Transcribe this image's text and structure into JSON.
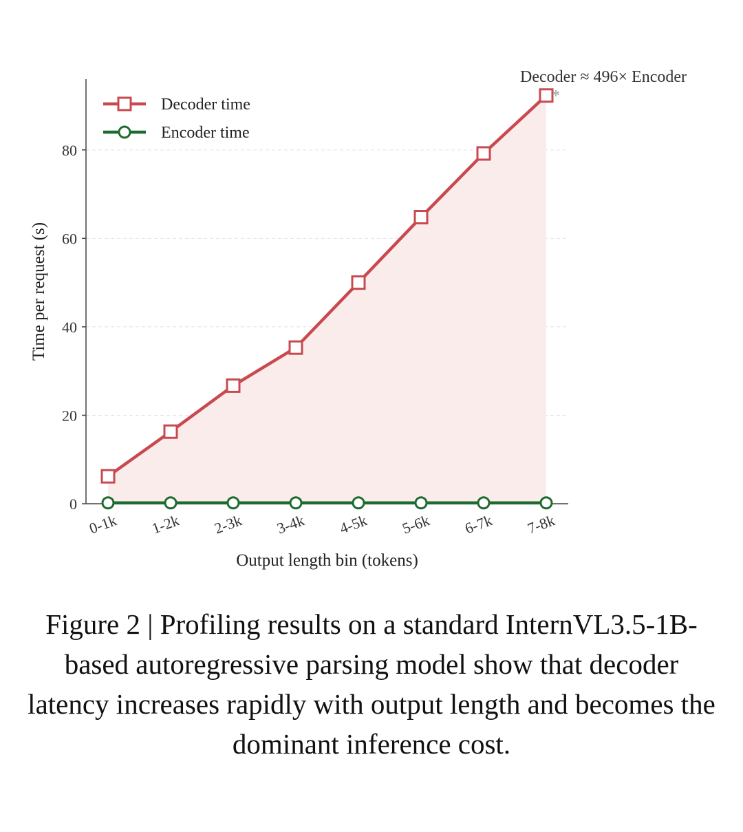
{
  "chart_data": {
    "type": "line",
    "categories": [
      "0-1k",
      "1-2k",
      "2-3k",
      "3-4k",
      "4-5k",
      "5-6k",
      "6-7k",
      "7-8k"
    ],
    "series": [
      {
        "name": "Decoder time",
        "values": [
          6.2,
          16.3,
          26.7,
          35.3,
          50.0,
          64.8,
          79.2,
          92.3
        ],
        "color": "#c8494f",
        "marker": "square",
        "fill_area": true
      },
      {
        "name": "Encoder time",
        "values": [
          0.19,
          0.19,
          0.19,
          0.19,
          0.19,
          0.19,
          0.19,
          0.19
        ],
        "color": "#1e6b30",
        "marker": "circle"
      }
    ],
    "xlabel": "Output length bin (tokens)",
    "ylabel": "Time per request (s)",
    "ylim": [
      0,
      96
    ],
    "yticks": [
      0,
      20,
      40,
      60,
      80
    ],
    "grid": true,
    "legend_position": "top-left",
    "annotation": {
      "text": "Decoder ≈ 496× Encoder",
      "marker": "*",
      "target_category": "7-8k"
    }
  },
  "caption": "Figure 2 | Profiling results on a standard InternVL3.5-1B-based autoregressive parsing model show that decoder latency increases rapidly with output length and becomes the dominant inference cost."
}
